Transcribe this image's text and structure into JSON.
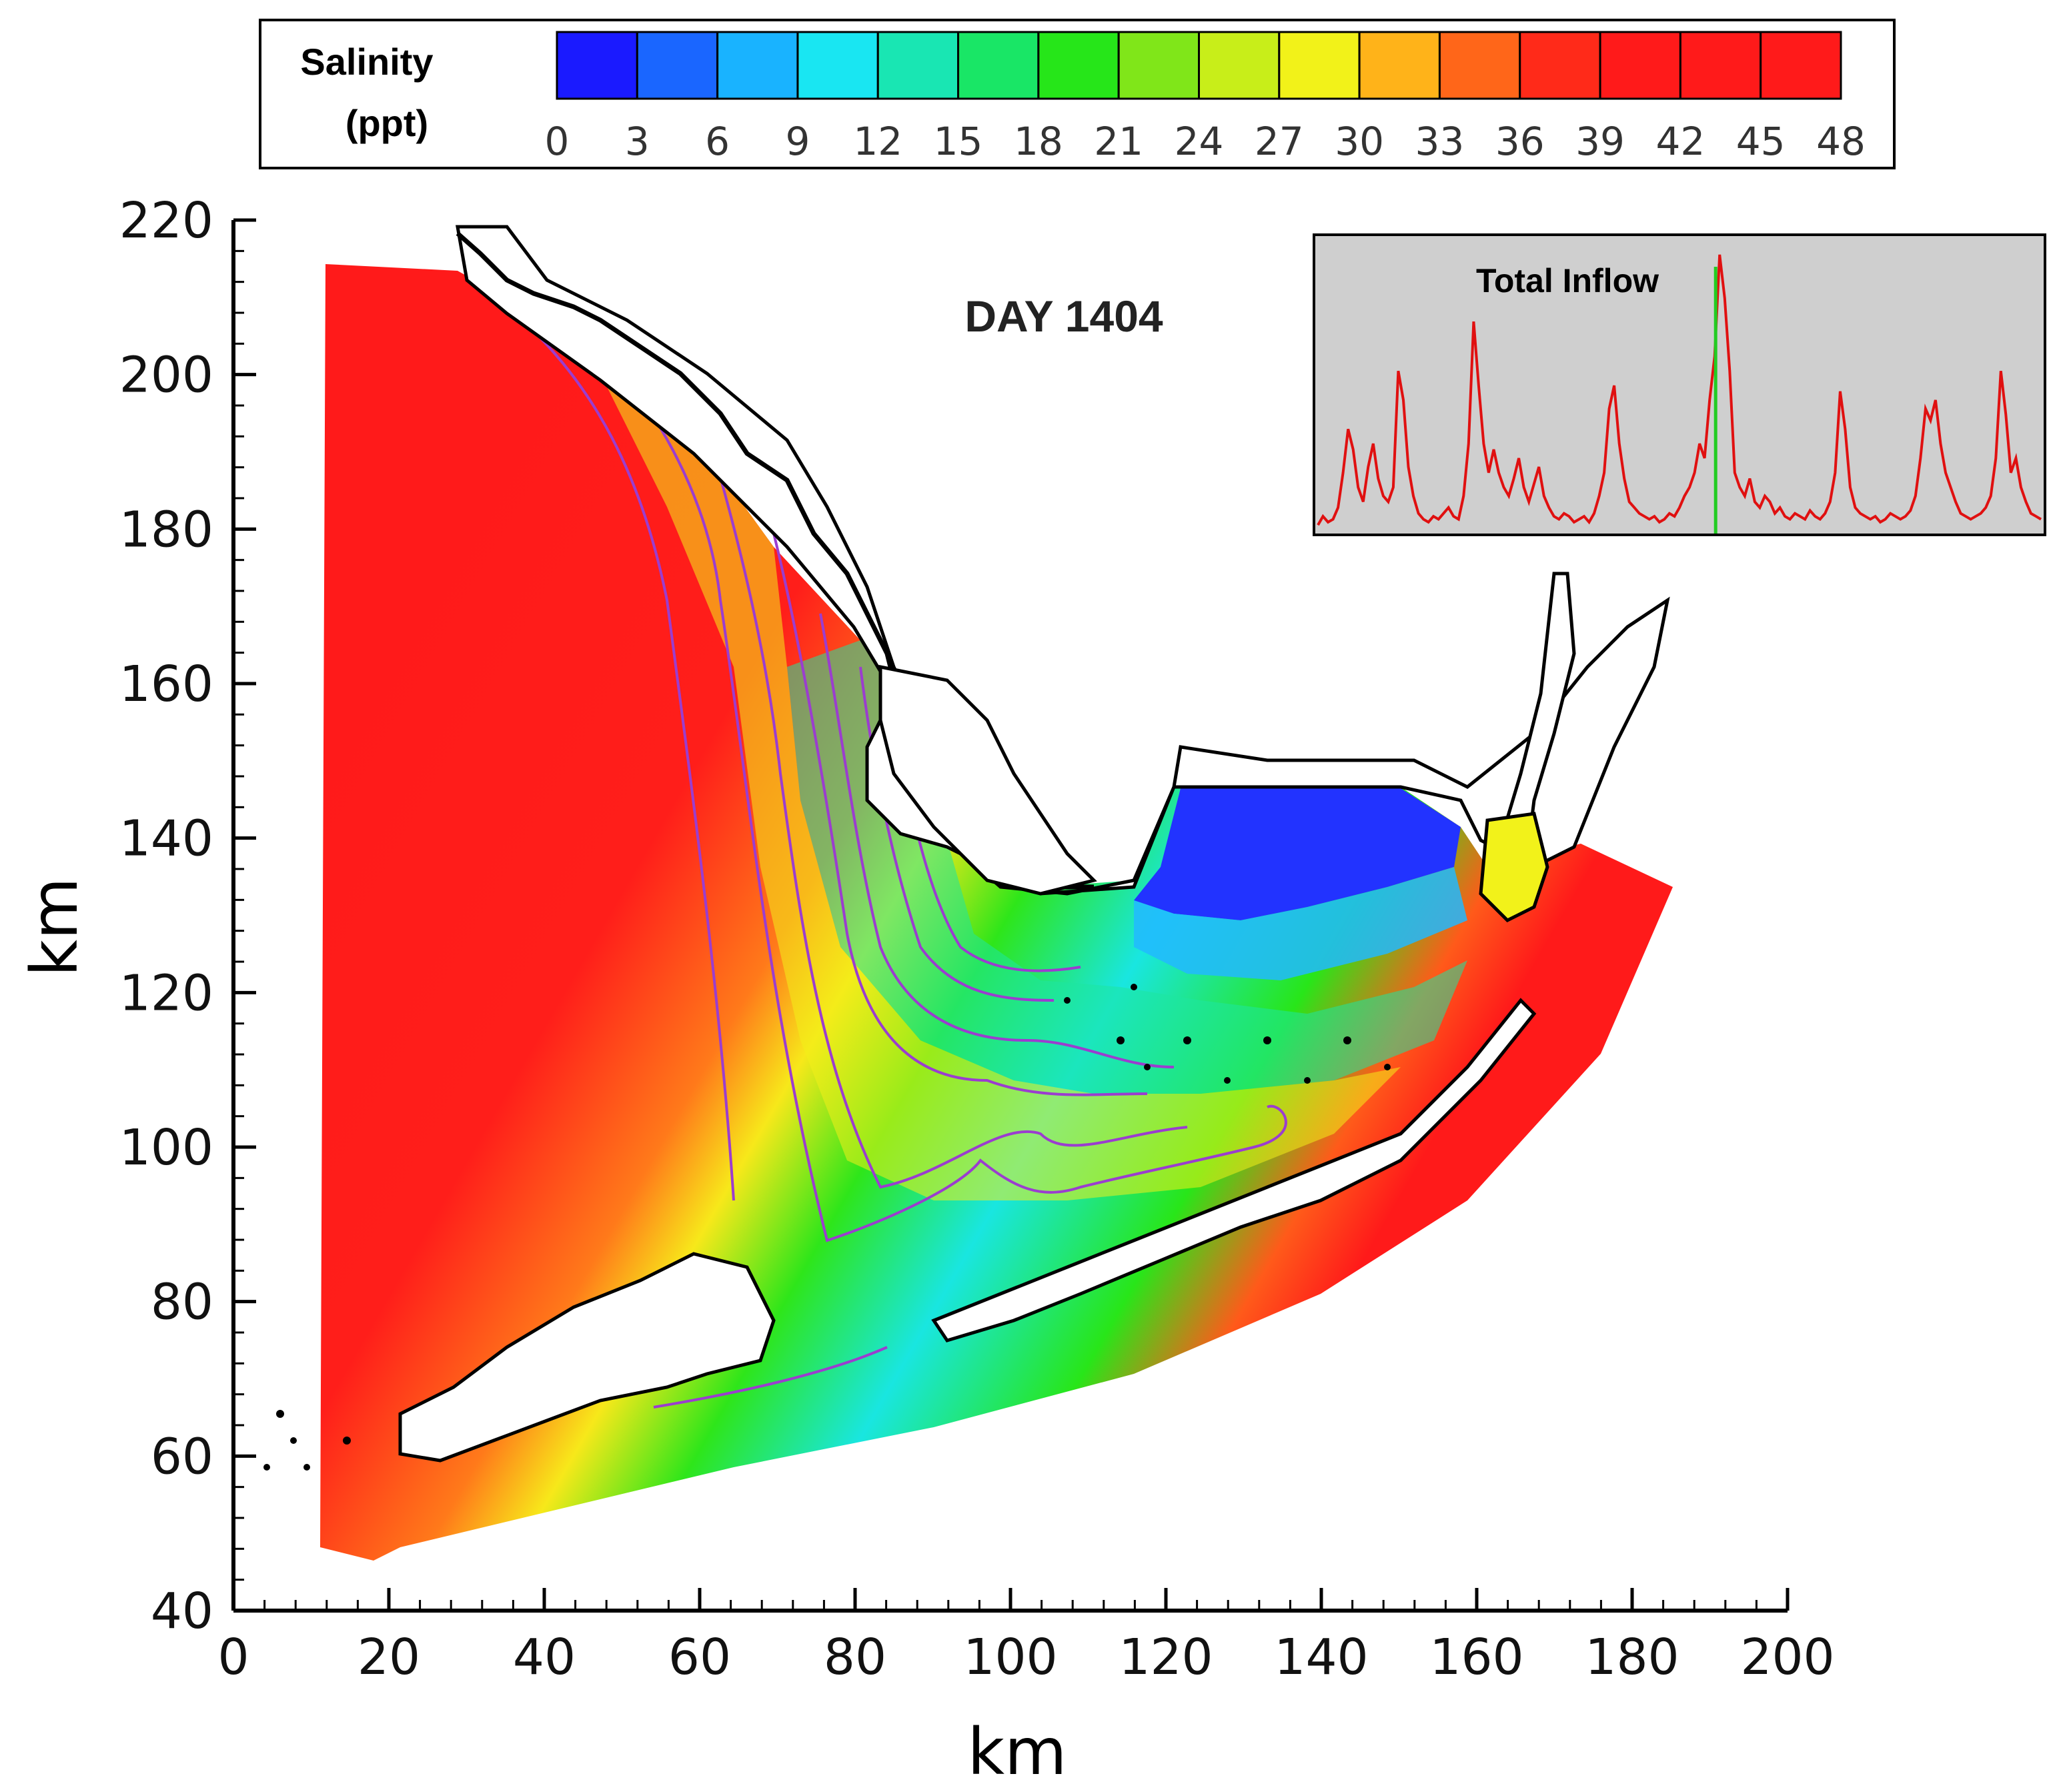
{
  "colorbar": {
    "title_line1": "Salinity",
    "title_line2": "(ppt)",
    "ticks": [
      "0",
      "3",
      "6",
      "9",
      "12",
      "15",
      "18",
      "21",
      "24",
      "27",
      "30",
      "33",
      "36",
      "39",
      "42",
      "45",
      "48"
    ],
    "colors": [
      "#1a1aff",
      "#1a66ff",
      "#19b3ff",
      "#19e6f2",
      "#19e6b3",
      "#19e666",
      "#26e619",
      "#80e619",
      "#c8ee19",
      "#f2f219",
      "#ffb319",
      "#ff6619",
      "#ff2a19",
      "#ff1a1a",
      "#ff1a1a",
      "#ff1a1a"
    ]
  },
  "map": {
    "day_label": "DAY 1404",
    "xlabel": "km",
    "ylabel": "km",
    "xlim": [
      0,
      200
    ],
    "ylim": [
      40,
      220
    ],
    "x_ticks": [
      "0",
      "20",
      "40",
      "60",
      "80",
      "100",
      "120",
      "140",
      "160",
      "180",
      "200"
    ],
    "y_ticks": [
      "40",
      "60",
      "80",
      "100",
      "120",
      "140",
      "160",
      "180",
      "200",
      "220"
    ],
    "land_color": "#ffffff",
    "coast_color": "#000000",
    "contour_color": "#9b3dcf"
  },
  "inset": {
    "title": "Total Inflow",
    "background": "#cfcfcf",
    "line_color": "#e01010",
    "marker_color": "#22cc22",
    "marker_position": 0.55,
    "series": [
      0.02,
      0.05,
      0.03,
      0.04,
      0.08,
      0.2,
      0.35,
      0.28,
      0.15,
      0.1,
      0.22,
      0.3,
      0.18,
      0.12,
      0.1,
      0.15,
      0.55,
      0.45,
      0.22,
      0.12,
      0.06,
      0.04,
      0.03,
      0.05,
      0.04,
      0.06,
      0.08,
      0.05,
      0.04,
      0.12,
      0.3,
      0.72,
      0.5,
      0.3,
      0.2,
      0.28,
      0.2,
      0.15,
      0.12,
      0.18,
      0.25,
      0.15,
      0.1,
      0.16,
      0.22,
      0.12,
      0.08,
      0.05,
      0.04,
      0.06,
      0.05,
      0.03,
      0.04,
      0.05,
      0.03,
      0.06,
      0.12,
      0.2,
      0.42,
      0.5,
      0.3,
      0.18,
      0.1,
      0.08,
      0.06,
      0.05,
      0.04,
      0.05,
      0.03,
      0.04,
      0.06,
      0.05,
      0.08,
      0.12,
      0.15,
      0.2,
      0.3,
      0.25,
      0.45,
      0.6,
      0.95,
      0.8,
      0.55,
      0.2,
      0.15,
      0.12,
      0.18,
      0.1,
      0.08,
      0.12,
      0.1,
      0.06,
      0.08,
      0.05,
      0.04,
      0.06,
      0.05,
      0.04,
      0.07,
      0.05,
      0.04,
      0.06,
      0.1,
      0.2,
      0.48,
      0.35,
      0.15,
      0.08,
      0.06,
      0.05,
      0.04,
      0.05,
      0.03,
      0.04,
      0.06,
      0.05,
      0.04,
      0.05,
      0.07,
      0.12,
      0.25,
      0.42,
      0.38,
      0.45,
      0.3,
      0.2,
      0.15,
      0.1,
      0.06,
      0.05,
      0.04,
      0.05,
      0.06,
      0.08,
      0.12,
      0.25,
      0.55,
      0.4,
      0.2,
      0.25,
      0.15,
      0.1,
      0.06,
      0.05,
      0.04
    ]
  }
}
